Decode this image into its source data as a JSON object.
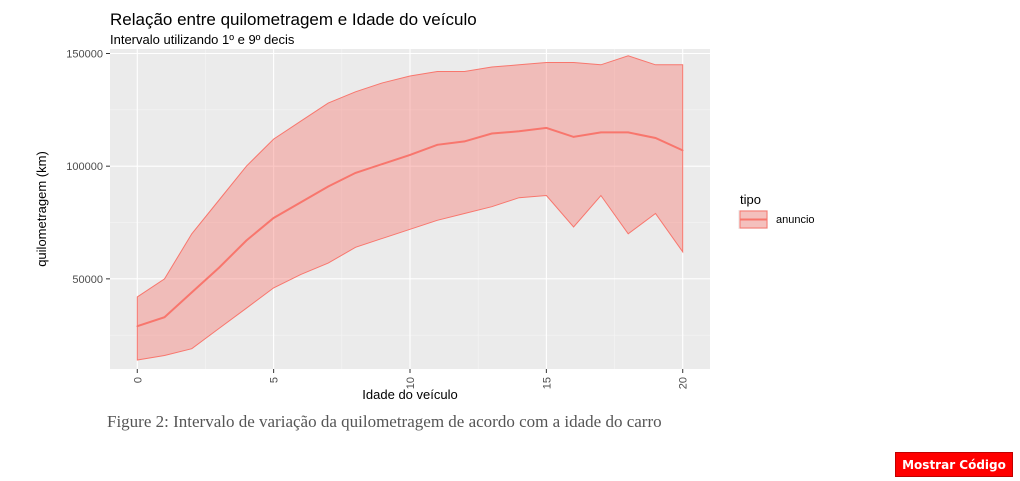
{
  "chart_data": {
    "type": "area",
    "title": "Relação entre quilometragem e Idade do veículo",
    "subtitle": "Intervalo utilizando 1º e 9º decis",
    "xlabel": "Idade do veículo",
    "ylabel": "quilometragem (km)",
    "xlim": [
      -1,
      21
    ],
    "ylim": [
      10000,
      152000
    ],
    "x_ticks": [
      0,
      5,
      10,
      15,
      20
    ],
    "y_ticks": [
      50000,
      100000,
      150000
    ],
    "y_tick_labels": [
      "50000",
      "100000",
      "150000"
    ],
    "grid": true,
    "legend": {
      "title": "tipo",
      "placement": "right",
      "entries": [
        "anuncio"
      ]
    },
    "series": [
      {
        "name": "anuncio",
        "color": "#F8766D",
        "x": [
          0,
          1,
          2,
          3,
          4,
          5,
          6,
          7,
          8,
          9,
          10,
          11,
          12,
          13,
          14,
          15,
          16,
          17,
          18,
          19,
          20
        ],
        "median": [
          29000,
          33000,
          44000,
          55000,
          67000,
          77000,
          84000,
          91000,
          97000,
          101000,
          105000,
          109500,
          111000,
          114500,
          115500,
          117000,
          113000,
          115000,
          115000,
          112500,
          107000
        ],
        "lower": [
          14000,
          16000,
          19000,
          28000,
          37000,
          46000,
          52000,
          57000,
          64000,
          68000,
          72000,
          76000,
          79000,
          82000,
          86000,
          87000,
          73000,
          87000,
          70000,
          79000,
          62000
        ],
        "upper": [
          42000,
          50000,
          70000,
          85000,
          100000,
          112000,
          120000,
          128000,
          133000,
          137000,
          140000,
          142000,
          142000,
          144000,
          145000,
          146000,
          146000,
          145000,
          149000,
          145000,
          145000
        ]
      }
    ]
  },
  "caption": "Figure 2: Intervalo de variação da quilometragem de acordo com a idade do carro",
  "button": {
    "label": "Mostrar Código",
    "bg_color": "#FF0000"
  }
}
